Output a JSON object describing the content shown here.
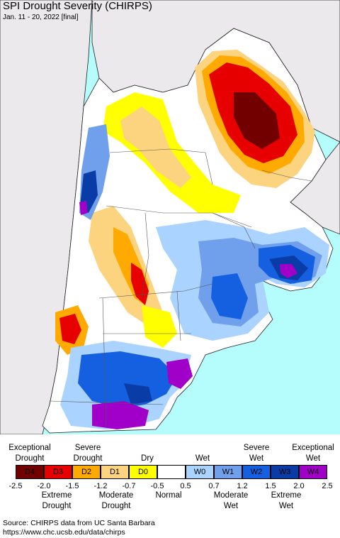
{
  "header": {
    "title": "SPI Drought Severity (CHIRPS)",
    "subtitle": "Jan. 11 - 20, 2022 [final]"
  },
  "map": {
    "ocean_color": "#b5fcfd",
    "land_outside_color": "#ece9ed"
  },
  "legend": {
    "top_labels": [
      {
        "text": "Exceptional\nDrought"
      },
      {
        "text": "Severe\nDrought"
      },
      {
        "text": "Dry"
      },
      {
        "text": "Wet"
      },
      {
        "text": "Severe\nWet"
      },
      {
        "text": "Exceptional\nWet"
      }
    ],
    "categories": [
      {
        "code": "D4",
        "color": "#730000"
      },
      {
        "code": "D3",
        "color": "#e60000"
      },
      {
        "code": "D2",
        "color": "#ffaa00"
      },
      {
        "code": "D1",
        "color": "#fcd37f"
      },
      {
        "code": "D0",
        "color": "#ffff00"
      },
      {
        "code": "",
        "color": "#ffffff"
      },
      {
        "code": "W0",
        "color": "#aad3ff"
      },
      {
        "code": "W1",
        "color": "#70a0ec"
      },
      {
        "code": "W2",
        "color": "#1560e0"
      },
      {
        "code": "W3",
        "color": "#0a3ca8"
      },
      {
        "code": "W4",
        "color": "#a000c8"
      }
    ],
    "ticks": [
      "-2.5",
      "-2.0",
      "-1.5",
      "-1.2",
      "-0.7",
      "-0.5",
      "0.5",
      "0.7",
      "1.2",
      "1.5",
      "2.0",
      "2.5"
    ],
    "bottom_labels": [
      {
        "text": "Extreme\nDrought"
      },
      {
        "text": "Moderate\nDrought"
      },
      {
        "text": "Normal"
      },
      {
        "text": "Moderate\nWet"
      },
      {
        "text": "Extreme\nWet"
      }
    ]
  },
  "source": {
    "line1": "Source: CHIRPS data from UC Santa Barbara",
    "line2": "https://www.chc.ucsb.edu/data/chirps"
  }
}
